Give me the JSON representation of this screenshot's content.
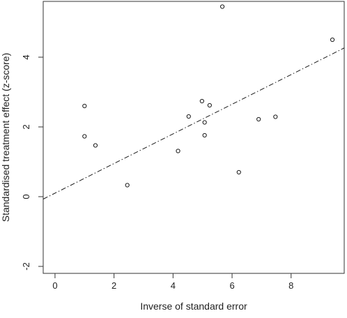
{
  "chart_data": {
    "type": "scatter",
    "title": "",
    "xlabel": "Inverse of standard error",
    "ylabel": "Standardised treatment effect (z-score)",
    "xlim": [
      -0.4,
      9.8
    ],
    "ylim": [
      -2.2,
      5.6
    ],
    "xticks": [
      0,
      2,
      4,
      6,
      8
    ],
    "yticks": [
      -2,
      0,
      2,
      4
    ],
    "grid": false,
    "legend": "none",
    "points": [
      {
        "x": 1.0,
        "y": 2.6
      },
      {
        "x": 1.0,
        "y": 1.73
      },
      {
        "x": 1.37,
        "y": 1.47
      },
      {
        "x": 2.45,
        "y": 0.33
      },
      {
        "x": 4.17,
        "y": 1.31
      },
      {
        "x": 4.53,
        "y": 2.3
      },
      {
        "x": 4.98,
        "y": 2.74
      },
      {
        "x": 5.07,
        "y": 2.13
      },
      {
        "x": 5.07,
        "y": 1.76
      },
      {
        "x": 5.24,
        "y": 2.62
      },
      {
        "x": 5.67,
        "y": 5.45
      },
      {
        "x": 6.23,
        "y": 0.7
      },
      {
        "x": 6.9,
        "y": 2.22
      },
      {
        "x": 7.47,
        "y": 2.29
      },
      {
        "x": 9.4,
        "y": 4.5
      }
    ],
    "regression_line": {
      "intercept": 0.1,
      "slope": 0.425,
      "style": "dash-dot"
    },
    "colors": {
      "marker": "#1a1a1a",
      "line": "#1a1a1a",
      "axes": "#333333"
    }
  }
}
